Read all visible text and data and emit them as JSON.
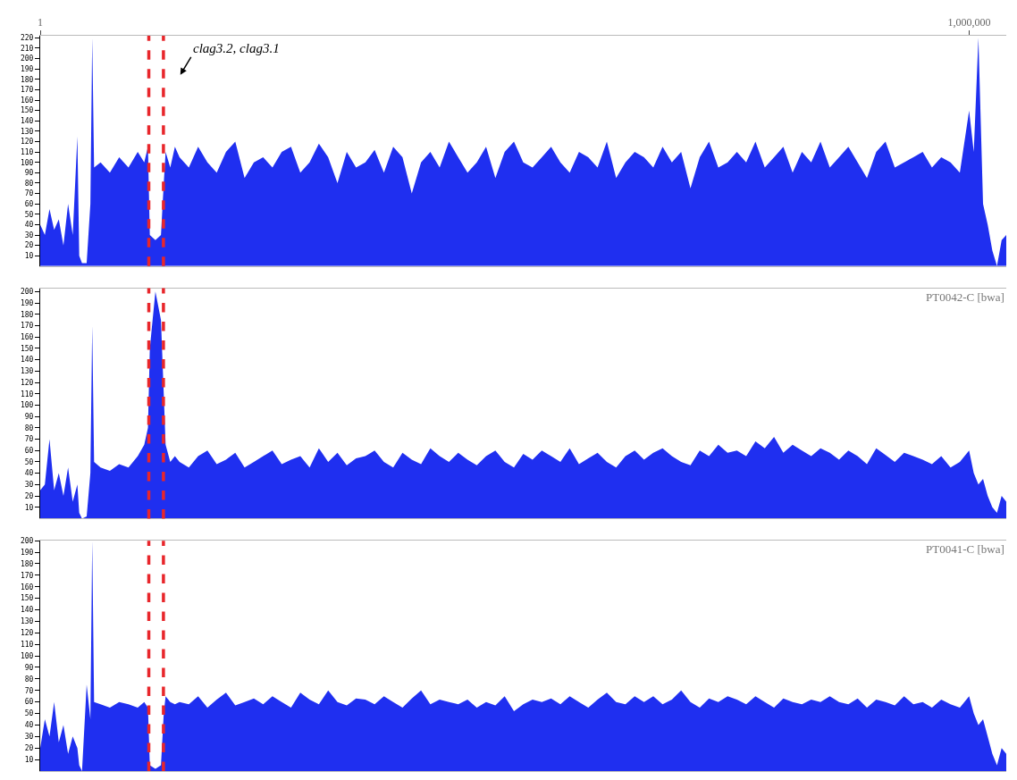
{
  "chart_data": [
    {
      "type": "area",
      "x": [
        1,
        5000,
        10000,
        15000,
        20000,
        25000,
        30000,
        35000,
        40000,
        42000,
        45000,
        50000,
        54000,
        56000,
        58000,
        65000,
        75000,
        85000,
        95000,
        105000,
        112000,
        116000,
        118000,
        124000,
        130000,
        133000,
        135000,
        140000,
        145000,
        150000,
        160000,
        170000,
        180000,
        190000,
        200000,
        210000,
        220000,
        230000,
        240000,
        250000,
        260000,
        270000,
        280000,
        290000,
        300000,
        310000,
        320000,
        330000,
        340000,
        350000,
        360000,
        370000,
        380000,
        390000,
        400000,
        410000,
        420000,
        430000,
        440000,
        450000,
        460000,
        470000,
        480000,
        490000,
        500000,
        510000,
        520000,
        530000,
        540000,
        550000,
        560000,
        570000,
        580000,
        590000,
        600000,
        610000,
        620000,
        630000,
        640000,
        650000,
        660000,
        670000,
        680000,
        690000,
        700000,
        710000,
        720000,
        730000,
        740000,
        750000,
        760000,
        770000,
        780000,
        790000,
        800000,
        810000,
        820000,
        830000,
        840000,
        850000,
        860000,
        870000,
        880000,
        890000,
        900000,
        910000,
        920000,
        930000,
        940000,
        950000,
        960000,
        970000,
        980000,
        990000,
        1000000,
        1005000,
        1010000,
        1015000,
        1020000,
        1025000,
        1030000,
        1035000,
        1040000
      ],
      "series": [
        {
          "color": "#1f2ff0",
          "values": [
            40,
            30,
            55,
            35,
            45,
            20,
            60,
            30,
            125,
            10,
            3,
            3,
            60,
            220,
            95,
            100,
            90,
            105,
            95,
            110,
            100,
            115,
            30,
            25,
            30,
            80,
            110,
            95,
            115,
            105,
            95,
            115,
            100,
            90,
            110,
            120,
            85,
            100,
            105,
            95,
            110,
            115,
            90,
            100,
            118,
            105,
            80,
            110,
            95,
            100,
            112,
            90,
            115,
            105,
            70,
            100,
            110,
            95,
            120,
            105,
            90,
            100,
            115,
            85,
            110,
            120,
            100,
            95,
            105,
            115,
            100,
            90,
            110,
            105,
            95,
            120,
            85,
            100,
            110,
            105,
            95,
            115,
            100,
            110,
            75,
            105,
            120,
            95,
            100,
            110,
            100,
            120,
            95,
            105,
            115,
            90,
            110,
            100,
            120,
            95,
            105,
            115,
            100,
            85,
            110,
            120,
            95,
            100,
            105,
            110,
            95,
            105,
            100,
            90,
            150,
            110,
            220,
            60,
            40,
            15,
            0,
            25,
            30
          ]
        }
      ],
      "xlim": [
        1,
        1040000
      ],
      "xticks": [
        1,
        {
          "value": 1000000,
          "label": "1,000,000"
        }
      ],
      "ylim": [
        0,
        222
      ],
      "yticks": [
        10,
        20,
        30,
        40,
        50,
        60,
        70,
        80,
        90,
        100,
        110,
        120,
        130,
        140,
        150,
        160,
        170,
        180,
        190,
        200,
        210,
        220
      ],
      "ref_lines": [
        {
          "axis": "x",
          "value": 116900,
          "color": "#e8262b",
          "line_style": "dashed"
        },
        {
          "axis": "x",
          "value": 132650,
          "color": "#e8262b",
          "line_style": "dashed"
        }
      ],
      "annotations": [
        "clag3.2, clag3.1"
      ]
    },
    {
      "type": "area",
      "title": "PT0042-C [bwa]",
      "x": [
        1,
        5000,
        10000,
        15000,
        20000,
        25000,
        30000,
        35000,
        40000,
        42000,
        45000,
        50000,
        54000,
        56000,
        58000,
        65000,
        75000,
        85000,
        95000,
        105000,
        112000,
        116000,
        118000,
        124000,
        130000,
        133000,
        135000,
        140000,
        145000,
        150000,
        160000,
        170000,
        180000,
        190000,
        200000,
        210000,
        220000,
        230000,
        240000,
        250000,
        260000,
        270000,
        280000,
        290000,
        300000,
        310000,
        320000,
        330000,
        340000,
        350000,
        360000,
        370000,
        380000,
        390000,
        400000,
        410000,
        420000,
        430000,
        440000,
        450000,
        460000,
        470000,
        480000,
        490000,
        500000,
        510000,
        520000,
        530000,
        540000,
        550000,
        560000,
        570000,
        580000,
        590000,
        600000,
        610000,
        620000,
        630000,
        640000,
        650000,
        660000,
        670000,
        680000,
        690000,
        700000,
        710000,
        720000,
        730000,
        740000,
        750000,
        760000,
        770000,
        780000,
        790000,
        800000,
        810000,
        820000,
        830000,
        840000,
        850000,
        860000,
        870000,
        880000,
        890000,
        900000,
        910000,
        920000,
        930000,
        940000,
        950000,
        960000,
        970000,
        980000,
        990000,
        1000000,
        1005000,
        1010000,
        1015000,
        1020000,
        1025000,
        1030000,
        1035000,
        1040000
      ],
      "series": [
        {
          "color": "#1f2ff0",
          "values": [
            25,
            30,
            70,
            25,
            40,
            20,
            45,
            15,
            30,
            5,
            0,
            2,
            40,
            170,
            50,
            45,
            42,
            48,
            45,
            55,
            65,
            80,
            150,
            200,
            175,
            110,
            65,
            50,
            55,
            50,
            45,
            55,
            60,
            48,
            52,
            58,
            45,
            50,
            55,
            60,
            48,
            52,
            55,
            45,
            62,
            50,
            58,
            47,
            53,
            55,
            60,
            50,
            45,
            58,
            52,
            48,
            62,
            55,
            50,
            58,
            52,
            47,
            55,
            60,
            50,
            45,
            57,
            52,
            60,
            55,
            50,
            62,
            48,
            53,
            58,
            50,
            45,
            55,
            60,
            52,
            58,
            62,
            55,
            50,
            47,
            60,
            55,
            65,
            58,
            60,
            55,
            68,
            62,
            72,
            58,
            65,
            60,
            55,
            62,
            58,
            52,
            60,
            55,
            48,
            62,
            56,
            50,
            58,
            55,
            52,
            48,
            55,
            45,
            50,
            60,
            40,
            30,
            35,
            20,
            10,
            5,
            20,
            15
          ]
        }
      ],
      "xlim": [
        1,
        1040000
      ],
      "ylim": [
        0,
        203
      ],
      "yticks": [
        10,
        20,
        30,
        40,
        50,
        60,
        70,
        80,
        90,
        100,
        110,
        120,
        130,
        140,
        150,
        160,
        170,
        180,
        190,
        200
      ],
      "tick_labels": "y",
      "ref_lines": [
        {
          "axis": "x",
          "value": 116900,
          "color": "#e8262b",
          "line_style": "dashed"
        },
        {
          "axis": "x",
          "value": 132650,
          "color": "#e8262b",
          "line_style": "dashed"
        }
      ]
    },
    {
      "type": "area",
      "title": "PT0041-C [bwa]",
      "x": [
        1,
        5000,
        10000,
        15000,
        20000,
        25000,
        30000,
        35000,
        40000,
        42000,
        45000,
        50000,
        54000,
        56000,
        58000,
        65000,
        75000,
        85000,
        95000,
        105000,
        112000,
        116000,
        118000,
        124000,
        130000,
        133000,
        135000,
        140000,
        145000,
        150000,
        160000,
        170000,
        180000,
        190000,
        200000,
        210000,
        220000,
        230000,
        240000,
        250000,
        260000,
        270000,
        280000,
        290000,
        300000,
        310000,
        320000,
        330000,
        340000,
        350000,
        360000,
        370000,
        380000,
        390000,
        400000,
        410000,
        420000,
        430000,
        440000,
        450000,
        460000,
        470000,
        480000,
        490000,
        500000,
        510000,
        520000,
        530000,
        540000,
        550000,
        560000,
        570000,
        580000,
        590000,
        600000,
        610000,
        620000,
        630000,
        640000,
        650000,
        660000,
        670000,
        680000,
        690000,
        700000,
        710000,
        720000,
        730000,
        740000,
        750000,
        760000,
        770000,
        780000,
        790000,
        800000,
        810000,
        820000,
        830000,
        840000,
        850000,
        860000,
        870000,
        880000,
        890000,
        900000,
        910000,
        920000,
        930000,
        940000,
        950000,
        960000,
        970000,
        980000,
        990000,
        1000000,
        1005000,
        1010000,
        1015000,
        1020000,
        1025000,
        1030000,
        1035000,
        1040000
      ],
      "series": [
        {
          "color": "#1f2ff0",
          "values": [
            20,
            45,
            30,
            60,
            25,
            40,
            15,
            30,
            20,
            5,
            0,
            75,
            45,
            200,
            60,
            58,
            55,
            60,
            58,
            55,
            60,
            55,
            5,
            2,
            5,
            50,
            65,
            60,
            58,
            60,
            58,
            65,
            55,
            62,
            68,
            57,
            60,
            63,
            58,
            65,
            60,
            55,
            68,
            62,
            58,
            70,
            60,
            57,
            63,
            62,
            58,
            65,
            60,
            55,
            63,
            70,
            58,
            62,
            60,
            58,
            62,
            55,
            60,
            57,
            65,
            52,
            58,
            62,
            60,
            63,
            58,
            65,
            60,
            55,
            62,
            68,
            60,
            58,
            65,
            60,
            65,
            58,
            62,
            70,
            60,
            55,
            63,
            60,
            65,
            62,
            58,
            65,
            60,
            55,
            63,
            60,
            58,
            62,
            60,
            65,
            60,
            58,
            63,
            55,
            62,
            60,
            57,
            65,
            58,
            60,
            55,
            62,
            58,
            55,
            65,
            50,
            40,
            45,
            30,
            15,
            5,
            20,
            15
          ]
        }
      ],
      "xlim": [
        1,
        1040000
      ],
      "ylim": [
        0,
        200
      ],
      "yticks": [
        10,
        20,
        30,
        40,
        50,
        60,
        70,
        80,
        90,
        100,
        110,
        120,
        130,
        140,
        150,
        160,
        170,
        180,
        190,
        200
      ],
      "tick_labels": "y",
      "ref_lines": [
        {
          "axis": "x",
          "value": 116900,
          "color": "#e8262b",
          "line_style": "dashed"
        },
        {
          "axis": "x",
          "value": 132650,
          "color": "#e8262b",
          "line_style": "dashed"
        }
      ]
    }
  ]
}
